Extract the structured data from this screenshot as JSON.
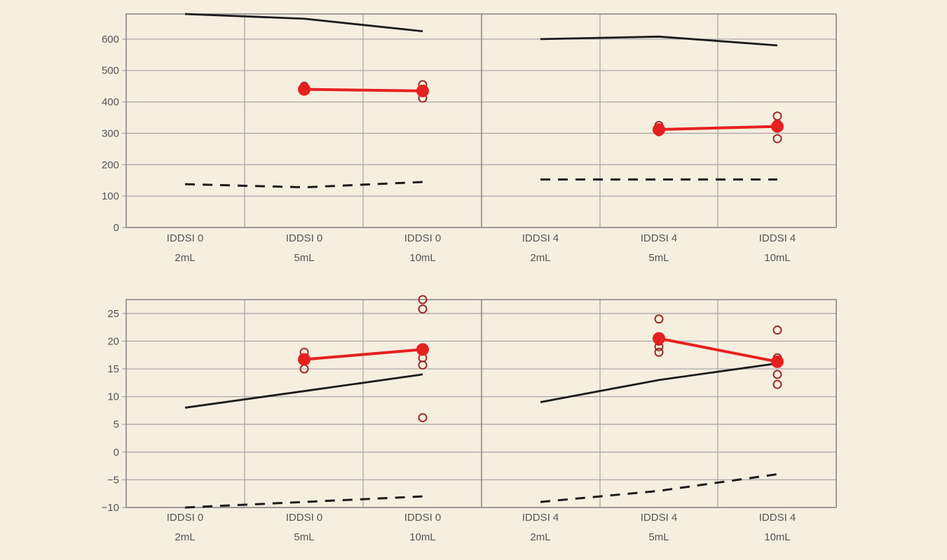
{
  "page": {
    "background": "#f6eedf"
  },
  "colors": {
    "grid": "#a9a9a9",
    "frame": "#8a8a8a",
    "solid_line": "#1b1b1b",
    "dashed_line": "#1b1b1b",
    "mean_line": "#e5211f",
    "individual_marker": "#9a2b2b",
    "tick_text": "#555555"
  },
  "chart_data": [
    {
      "type": "line",
      "title": "",
      "xlabel": "",
      "ylabel": "",
      "ylim": [
        0,
        680
      ],
      "yticks": [
        0,
        100,
        200,
        300,
        400,
        500,
        600
      ],
      "grid": true,
      "groups": [
        "IDDSI 0",
        "IDDSI 4"
      ],
      "categories": [
        {
          "top": "IDDSI 0",
          "bottom": "2mL"
        },
        {
          "top": "IDDSI 0",
          "bottom": "5mL"
        },
        {
          "top": "IDDSI 0",
          "bottom": "10mL"
        },
        {
          "top": "IDDSI 4",
          "bottom": "2mL"
        },
        {
          "top": "IDDSI 4",
          "bottom": "5mL"
        },
        {
          "top": "IDDSI 4",
          "bottom": "10mL"
        }
      ],
      "series": [
        {
          "style": "solid",
          "segments": [
            {
              "x": [
                0,
                1,
                2
              ],
              "y": [
                680,
                665,
                625
              ]
            },
            {
              "x": [
                3,
                4,
                5
              ],
              "y": [
                600,
                608,
                580
              ]
            }
          ]
        },
        {
          "style": "dashed",
          "segments": [
            {
              "x": [
                0,
                1,
                2
              ],
              "y": [
                138,
                128,
                145
              ]
            },
            {
              "x": [
                3,
                4,
                5
              ],
              "y": [
                153,
                153,
                153
              ]
            }
          ]
        },
        {
          "style": "mean",
          "segments": [
            {
              "x": [
                1,
                2
              ],
              "y": [
                440,
                435
              ]
            },
            {
              "x": [
                4,
                5
              ],
              "y": [
                312,
                322
              ]
            }
          ]
        }
      ],
      "individual_points": [
        {
          "x": 1,
          "y": [
            450,
            445,
            440,
            435
          ]
        },
        {
          "x": 2,
          "y": [
            455,
            440,
            430,
            412
          ]
        },
        {
          "x": 4,
          "y": [
            325,
            315,
            305
          ]
        },
        {
          "x": 5,
          "y": [
            355,
            330,
            320,
            283
          ]
        }
      ]
    },
    {
      "type": "line",
      "title": "",
      "xlabel": "",
      "ylabel": "",
      "ylim": [
        -10,
        27.5
      ],
      "yticks": [
        -10,
        -5,
        0,
        5,
        10,
        15,
        20,
        25
      ],
      "grid": true,
      "groups": [
        "IDDSI 0",
        "IDDSI 4"
      ],
      "categories": [
        {
          "top": "IDDSI 0",
          "bottom": "2mL"
        },
        {
          "top": "IDDSI 0",
          "bottom": "5mL"
        },
        {
          "top": "IDDSI 0",
          "bottom": "10mL"
        },
        {
          "top": "IDDSI 4",
          "bottom": "2mL"
        },
        {
          "top": "IDDSI 4",
          "bottom": "5mL"
        },
        {
          "top": "IDDSI 4",
          "bottom": "10mL"
        }
      ],
      "series": [
        {
          "style": "solid",
          "segments": [
            {
              "x": [
                0,
                1,
                2
              ],
              "y": [
                8,
                11,
                14
              ]
            },
            {
              "x": [
                3,
                4,
                5
              ],
              "y": [
                9,
                13,
                16
              ]
            }
          ]
        },
        {
          "style": "dashed",
          "segments": [
            {
              "x": [
                0,
                1,
                2
              ],
              "y": [
                -10,
                -9,
                -8
              ]
            },
            {
              "x": [
                3,
                4,
                5
              ],
              "y": [
                -9,
                -7,
                -4
              ]
            }
          ]
        },
        {
          "style": "mean",
          "segments": [
            {
              "x": [
                1,
                2
              ],
              "y": [
                16.7,
                18.5
              ]
            },
            {
              "x": [
                4,
                5
              ],
              "y": [
                20.5,
                16.3
              ]
            }
          ]
        }
      ],
      "individual_points": [
        {
          "x": 1,
          "y": [
            18,
            17,
            16.5,
            15
          ]
        },
        {
          "x": 2,
          "y": [
            27.5,
            25.8,
            17,
            15.7,
            6.2
          ]
        },
        {
          "x": 4,
          "y": [
            24,
            20,
            19,
            18
          ]
        },
        {
          "x": 5,
          "y": [
            22,
            17,
            16.5,
            14,
            12.2
          ]
        }
      ]
    }
  ]
}
